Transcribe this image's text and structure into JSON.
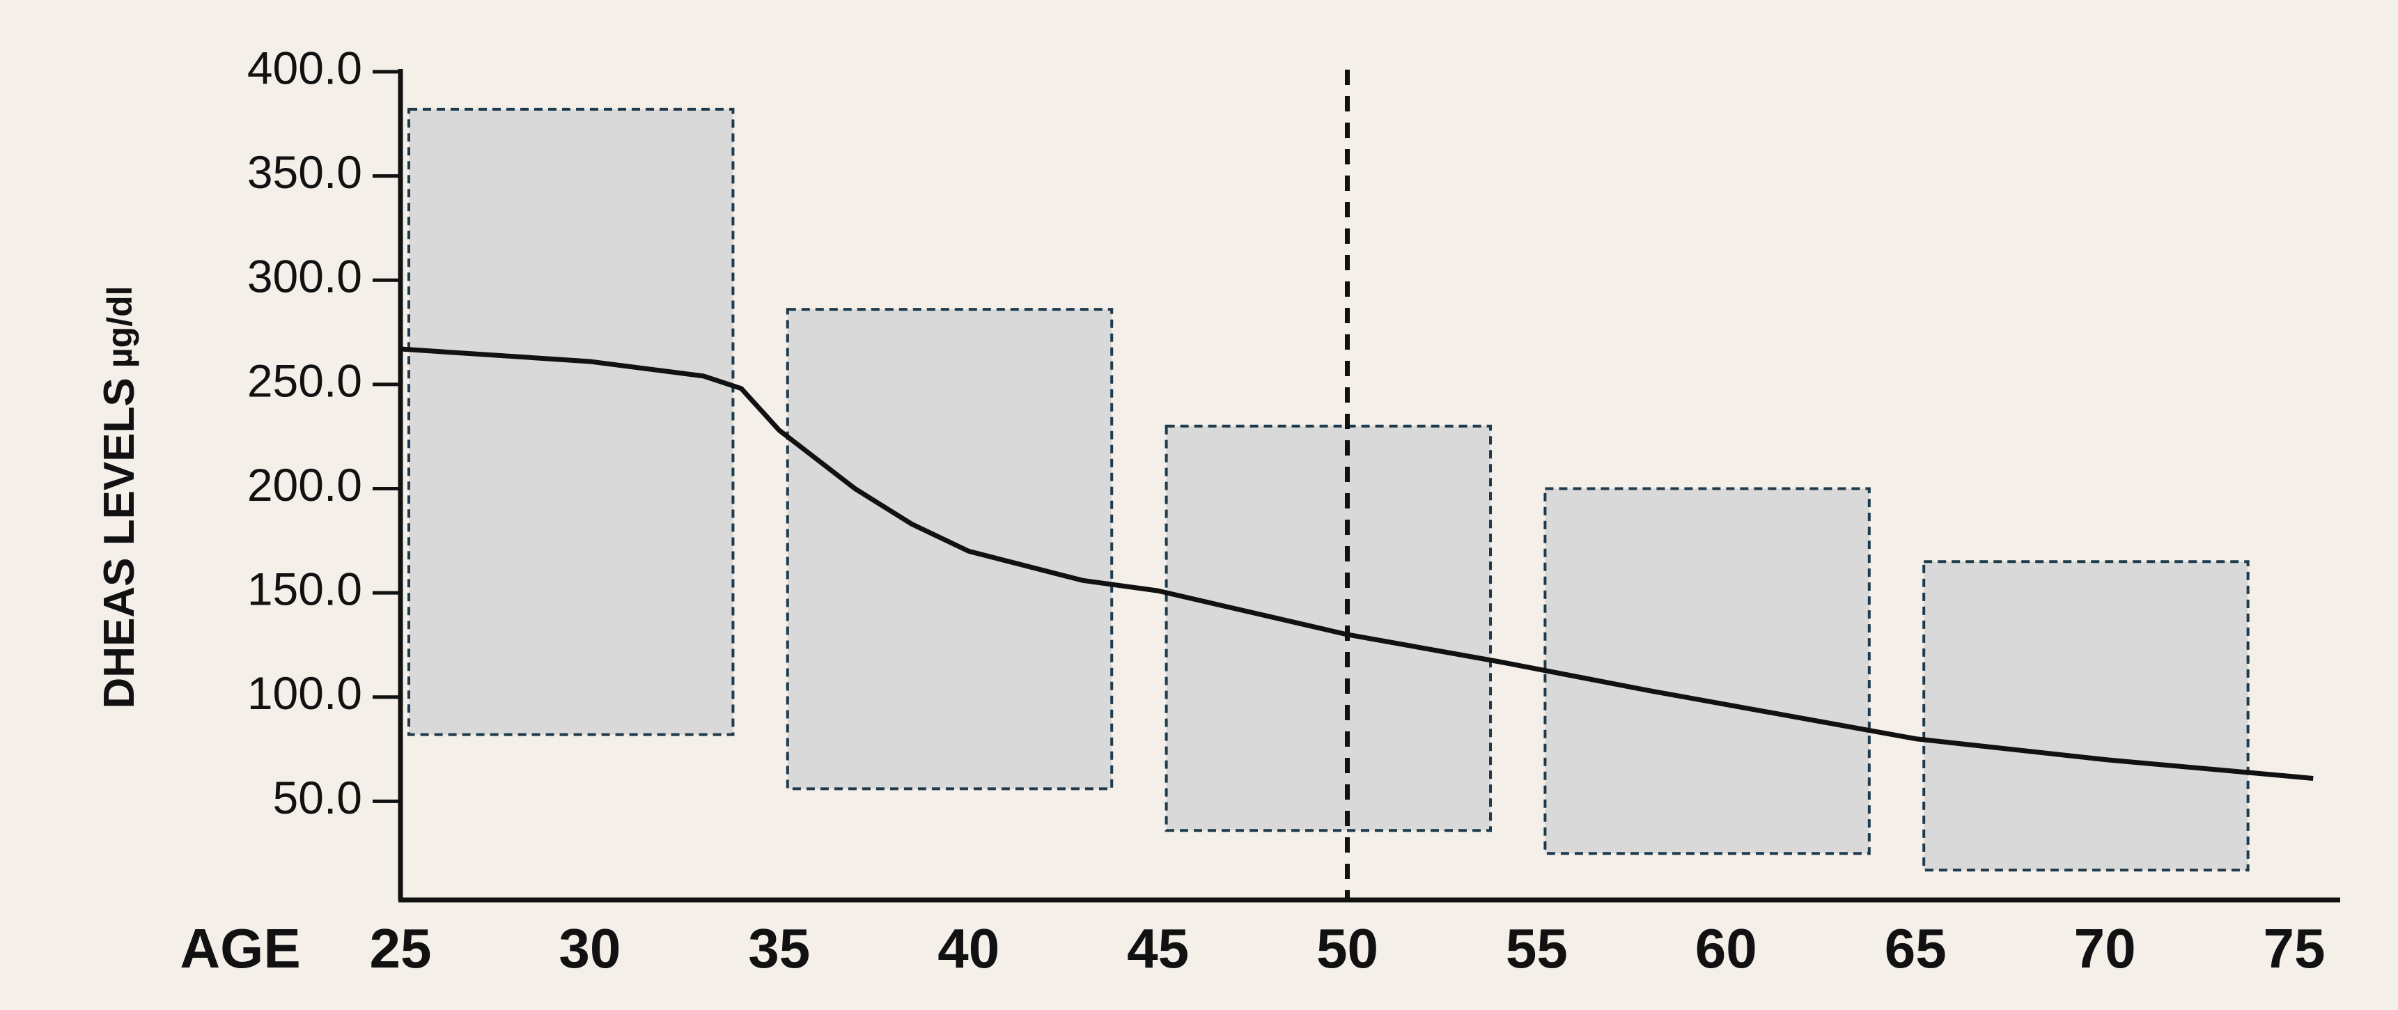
{
  "chart_data": {
    "type": "line",
    "y_label": "DHEAS LEVELS",
    "y_unit": "µg/dl",
    "x_label": "AGE",
    "xlim": [
      25,
      75
    ],
    "xticks": [
      25,
      30,
      35,
      40,
      45,
      50,
      55,
      60,
      65,
      70,
      75
    ],
    "ylim": [
      0,
      400
    ],
    "yticks": [
      {
        "value": 50,
        "label": "50.0"
      },
      {
        "value": 100,
        "label": "100.0"
      },
      {
        "value": 150,
        "label": "150.0"
      },
      {
        "value": 200,
        "label": "200.0"
      },
      {
        "value": 250,
        "label": "250.0"
      },
      {
        "value": 300,
        "label": "300.0"
      },
      {
        "value": 350,
        "label": "350.0"
      },
      {
        "value": 400,
        "label": "400.0"
      }
    ],
    "vline": 50,
    "ranges": {
      "color": "#d9d9d9",
      "edge_color": "#1f3a4d",
      "x_start": [
        25,
        35,
        45,
        55,
        65
      ],
      "x_end": [
        34,
        44,
        54,
        64,
        74
      ],
      "low": [
        82,
        56,
        36,
        25,
        17
      ],
      "high": [
        382,
        286,
        230,
        200,
        165
      ]
    },
    "series": [
      {
        "color": "#111111",
        "x": [
          25,
          30,
          33,
          34,
          35,
          37,
          38.5,
          40,
          43,
          45,
          50,
          54,
          58,
          65,
          70,
          75.5
        ],
        "values": [
          267,
          261,
          254,
          248,
          228,
          200,
          183,
          170,
          156,
          151,
          130,
          117,
          103,
          80,
          70,
          61
        ]
      }
    ]
  }
}
